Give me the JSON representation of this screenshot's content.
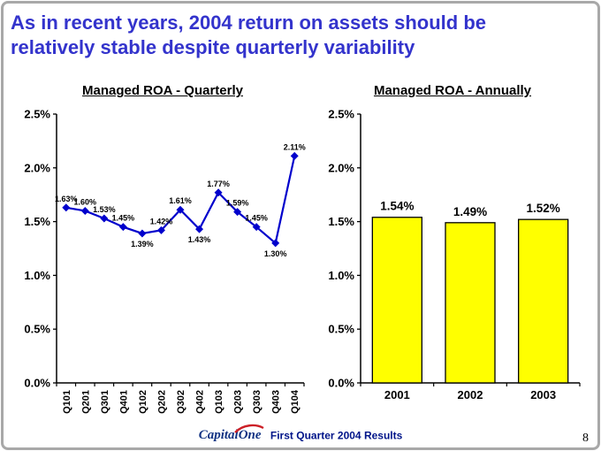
{
  "slide": {
    "title_lines": [
      "As in recent years, 2004 return on assets should be",
      "relatively stable despite quarterly variability"
    ],
    "title_color": "#3333cc"
  },
  "chart_data": [
    {
      "type": "line",
      "title": "Managed ROA - Quarterly",
      "categories": [
        "Q101",
        "Q201",
        "Q301",
        "Q401",
        "Q102",
        "Q202",
        "Q302",
        "Q402",
        "Q103",
        "Q203",
        "Q303",
        "Q403",
        "Q104"
      ],
      "values": [
        1.63,
        1.6,
        1.53,
        1.45,
        1.39,
        1.42,
        1.61,
        1.43,
        1.77,
        1.59,
        1.45,
        1.3,
        2.11
      ],
      "labels": [
        "1.63%",
        "1.60%",
        "1.53%",
        "1.45%",
        "1.39%",
        "1.42%",
        "1.61%",
        "1.43%",
        "1.77%",
        "1.59%",
        "1.45%",
        "1.30%",
        "2.11%"
      ],
      "label_side": [
        "above",
        "above",
        "above",
        "above",
        "below",
        "above",
        "above",
        "below",
        "above",
        "above",
        "above",
        "below",
        "above"
      ],
      "ylim": [
        0,
        2.5
      ],
      "ytick_labels": [
        "0.0%",
        "0.5%",
        "1.0%",
        "1.5%",
        "2.0%",
        "2.5%"
      ],
      "line_color": "#0000cc",
      "marker": "diamond",
      "grid": false,
      "legend": "none"
    },
    {
      "type": "bar",
      "title": "Managed ROA - Annually",
      "categories": [
        "2001",
        "2002",
        "2003"
      ],
      "values": [
        1.54,
        1.49,
        1.52
      ],
      "labels": [
        "1.54%",
        "1.49%",
        "1.52%"
      ],
      "ylim": [
        0,
        2.5
      ],
      "ytick_labels": [
        "0.0%",
        "0.5%",
        "1.0%",
        "1.5%",
        "2.0%",
        "2.5%"
      ],
      "bar_color": "#ffff00",
      "bar_border": "#000000",
      "grid": false,
      "legend": "none"
    }
  ],
  "footer": {
    "logo_capital": "Capital",
    "logo_one": "One",
    "text": "First Quarter 2004 Results",
    "page_number": "8"
  }
}
